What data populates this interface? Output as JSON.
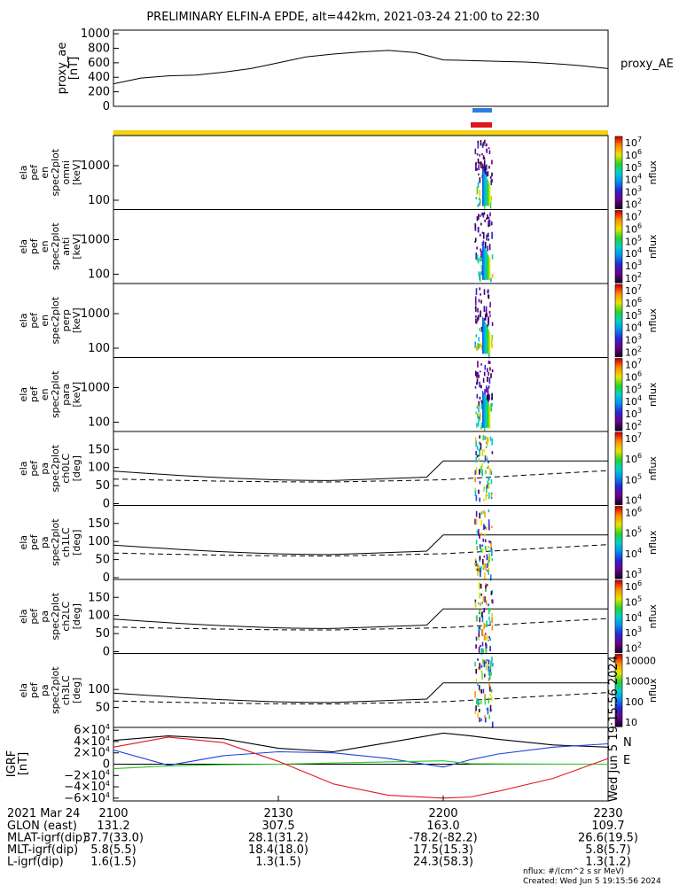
{
  "title": "PRELIMINARY ELFIN-A EPDE, alt=442km, 2021-03-24 21:00 to 22:30",
  "colors": {
    "ae_line": "#000000",
    "bar_blue": "#2a7fe0",
    "bar_red": "#e0181c",
    "bar_yellow": "#f2d313",
    "grf_red": "#e0181c",
    "grf_blue": "#1e3ee0",
    "grf_green": "#28c828",
    "grf_black": "#000000"
  },
  "chart_data": [
    {
      "type": "line",
      "title": "proxy_AE",
      "ylabel_lines": [
        "proxy_ae",
        "[nT]"
      ],
      "ylim": [
        0,
        1050
      ],
      "yticks": [
        "1000",
        "800",
        "600",
        "400",
        "200",
        "0"
      ],
      "legend": "proxy_AE",
      "x_minutes": [
        0,
        5,
        10,
        15,
        20,
        25,
        30,
        35,
        40,
        45,
        50,
        55,
        60,
        65,
        70,
        75,
        80,
        85,
        90
      ],
      "values": [
        310,
        390,
        420,
        430,
        470,
        520,
        600,
        680,
        720,
        750,
        770,
        740,
        640,
        630,
        620,
        610,
        590,
        560,
        520
      ]
    },
    {
      "type": "heatmap",
      "panels": [
        {
          "ylabel_lines": [
            "ela",
            "pef",
            "en",
            "spec2plot",
            "omni",
            "[keV]"
          ],
          "yticks": [
            "1000",
            "100"
          ],
          "cbar_ticks": [
            "10^7",
            "10^6",
            "10^5",
            "10^4",
            "10^3",
            "10^2"
          ],
          "cbar_label": "nflux"
        },
        {
          "ylabel_lines": [
            "ela",
            "pef",
            "en",
            "spec2plot",
            "anti",
            "[keV]"
          ],
          "yticks": [
            "1000",
            "100"
          ],
          "cbar_ticks": [
            "10^7",
            "10^6",
            "10^5",
            "10^4",
            "10^3",
            "10^2"
          ],
          "cbar_label": "nflux"
        },
        {
          "ylabel_lines": [
            "ela",
            "pef",
            "en",
            "spec2plot",
            "perp",
            "[keV]"
          ],
          "yticks": [
            "1000",
            "100"
          ],
          "cbar_ticks": [
            "10^7",
            "10^6",
            "10^5",
            "10^4",
            "10^3",
            "10^2"
          ],
          "cbar_label": "nflux"
        },
        {
          "ylabel_lines": [
            "ela",
            "pef",
            "en",
            "spec2plot",
            "para",
            "[keV]"
          ],
          "yticks": [
            "1000",
            "100"
          ],
          "cbar_ticks": [
            "10^7",
            "10^6",
            "10^5",
            "10^4",
            "10^3",
            "10^2"
          ],
          "cbar_label": "nflux"
        },
        {
          "ylabel_lines": [
            "ela",
            "pef",
            "pa",
            "spec2plot",
            "ch0LC",
            "[deg]"
          ],
          "yticks": [
            "150",
            "100",
            "50",
            "0"
          ],
          "cbar_ticks": [
            "10^7",
            "10^6",
            "10^5",
            "10^4"
          ],
          "cbar_label": "nflux"
        },
        {
          "ylabel_lines": [
            "ela",
            "pef",
            "pa",
            "spec2plot",
            "ch1LC",
            "[deg]"
          ],
          "yticks": [
            "150",
            "100",
            "50",
            "0"
          ],
          "cbar_ticks": [
            "10^6",
            "10^5",
            "10^4",
            "10^3"
          ],
          "cbar_label": "nflux"
        },
        {
          "ylabel_lines": [
            "ela",
            "pef",
            "pa",
            "spec2plot",
            "ch2LC",
            "[deg]"
          ],
          "yticks": [
            "150",
            "100",
            "50",
            "0"
          ],
          "cbar_ticks": [
            "10^6",
            "10^5",
            "10^4",
            "10^3",
            "10^2"
          ],
          "cbar_label": "nflux"
        },
        {
          "ylabel_lines": [
            "ela",
            "pef",
            "pa",
            "spec2plot",
            "ch3LC",
            "[deg]"
          ],
          "yticks": [
            "100",
            "50"
          ],
          "cbar_ticks": [
            "10000",
            "1000",
            "100",
            "10"
          ],
          "cbar_label": "nflux"
        }
      ]
    },
    {
      "type": "line",
      "ylabel_lines": [
        "IGRF",
        "[nT]"
      ],
      "yticks": [
        "6×10^4",
        "4×10^4",
        "2×10^4",
        "0",
        "−2×10^4",
        "−4×10^4",
        "−6×10^4"
      ],
      "ylim": [
        -65000,
        65000
      ],
      "legend_labels": [
        "N",
        "E"
      ],
      "x_minutes": [
        0,
        10,
        20,
        30,
        40,
        50,
        60,
        65,
        70,
        80,
        90
      ],
      "series": [
        {
          "values": [
            42000,
            50000,
            45000,
            28000,
            22000,
            38000,
            55000,
            50000,
            44000,
            34000,
            30000
          ]
        },
        {
          "values": [
            25000,
            -2000,
            15000,
            22000,
            20000,
            10000,
            -5000,
            8000,
            18000,
            30000,
            36000
          ]
        },
        {
          "values": [
            -8000,
            -3000,
            -1000,
            0,
            2000,
            4000,
            6000,
            1000,
            500,
            200,
            0
          ]
        },
        {
          "values": [
            30000,
            48000,
            38000,
            5000,
            -35000,
            -55000,
            -60000,
            -58000,
            -48000,
            -25000,
            10000
          ]
        }
      ]
    }
  ],
  "x_axis": {
    "date": "2021 Mar 24",
    "ticks": [
      "2100",
      "2130",
      "2200",
      "2230"
    ],
    "rows": [
      {
        "label": "GLON (east)",
        "vals": [
          "131.2",
          "307.5",
          "163.0",
          "109.7"
        ]
      },
      {
        "label": "MLAT-igrf(dip)",
        "vals": [
          "37.7(33.0)",
          "28.1(31.2)",
          "-78.2(-82.2)",
          "26.6(19.5)"
        ]
      },
      {
        "label": "MLT-igrf(dip)",
        "vals": [
          "5.8(5.5)",
          "18.4(18.0)",
          "17.5(15.3)",
          "5.8(5.7)"
        ]
      },
      {
        "label": "L-igrf(dip)",
        "vals": [
          "1.6(1.5)",
          "1.3(1.5)",
          "24.3(58.3)",
          "1.3(1.2)"
        ]
      }
    ]
  },
  "footer": {
    "units": "nflux: #/(cm^2 s sr MeV)",
    "created": "Created: Wed Jun  5 19:15:56 2024",
    "stamp": "Wed Jun  5 19:15:56 2024"
  }
}
